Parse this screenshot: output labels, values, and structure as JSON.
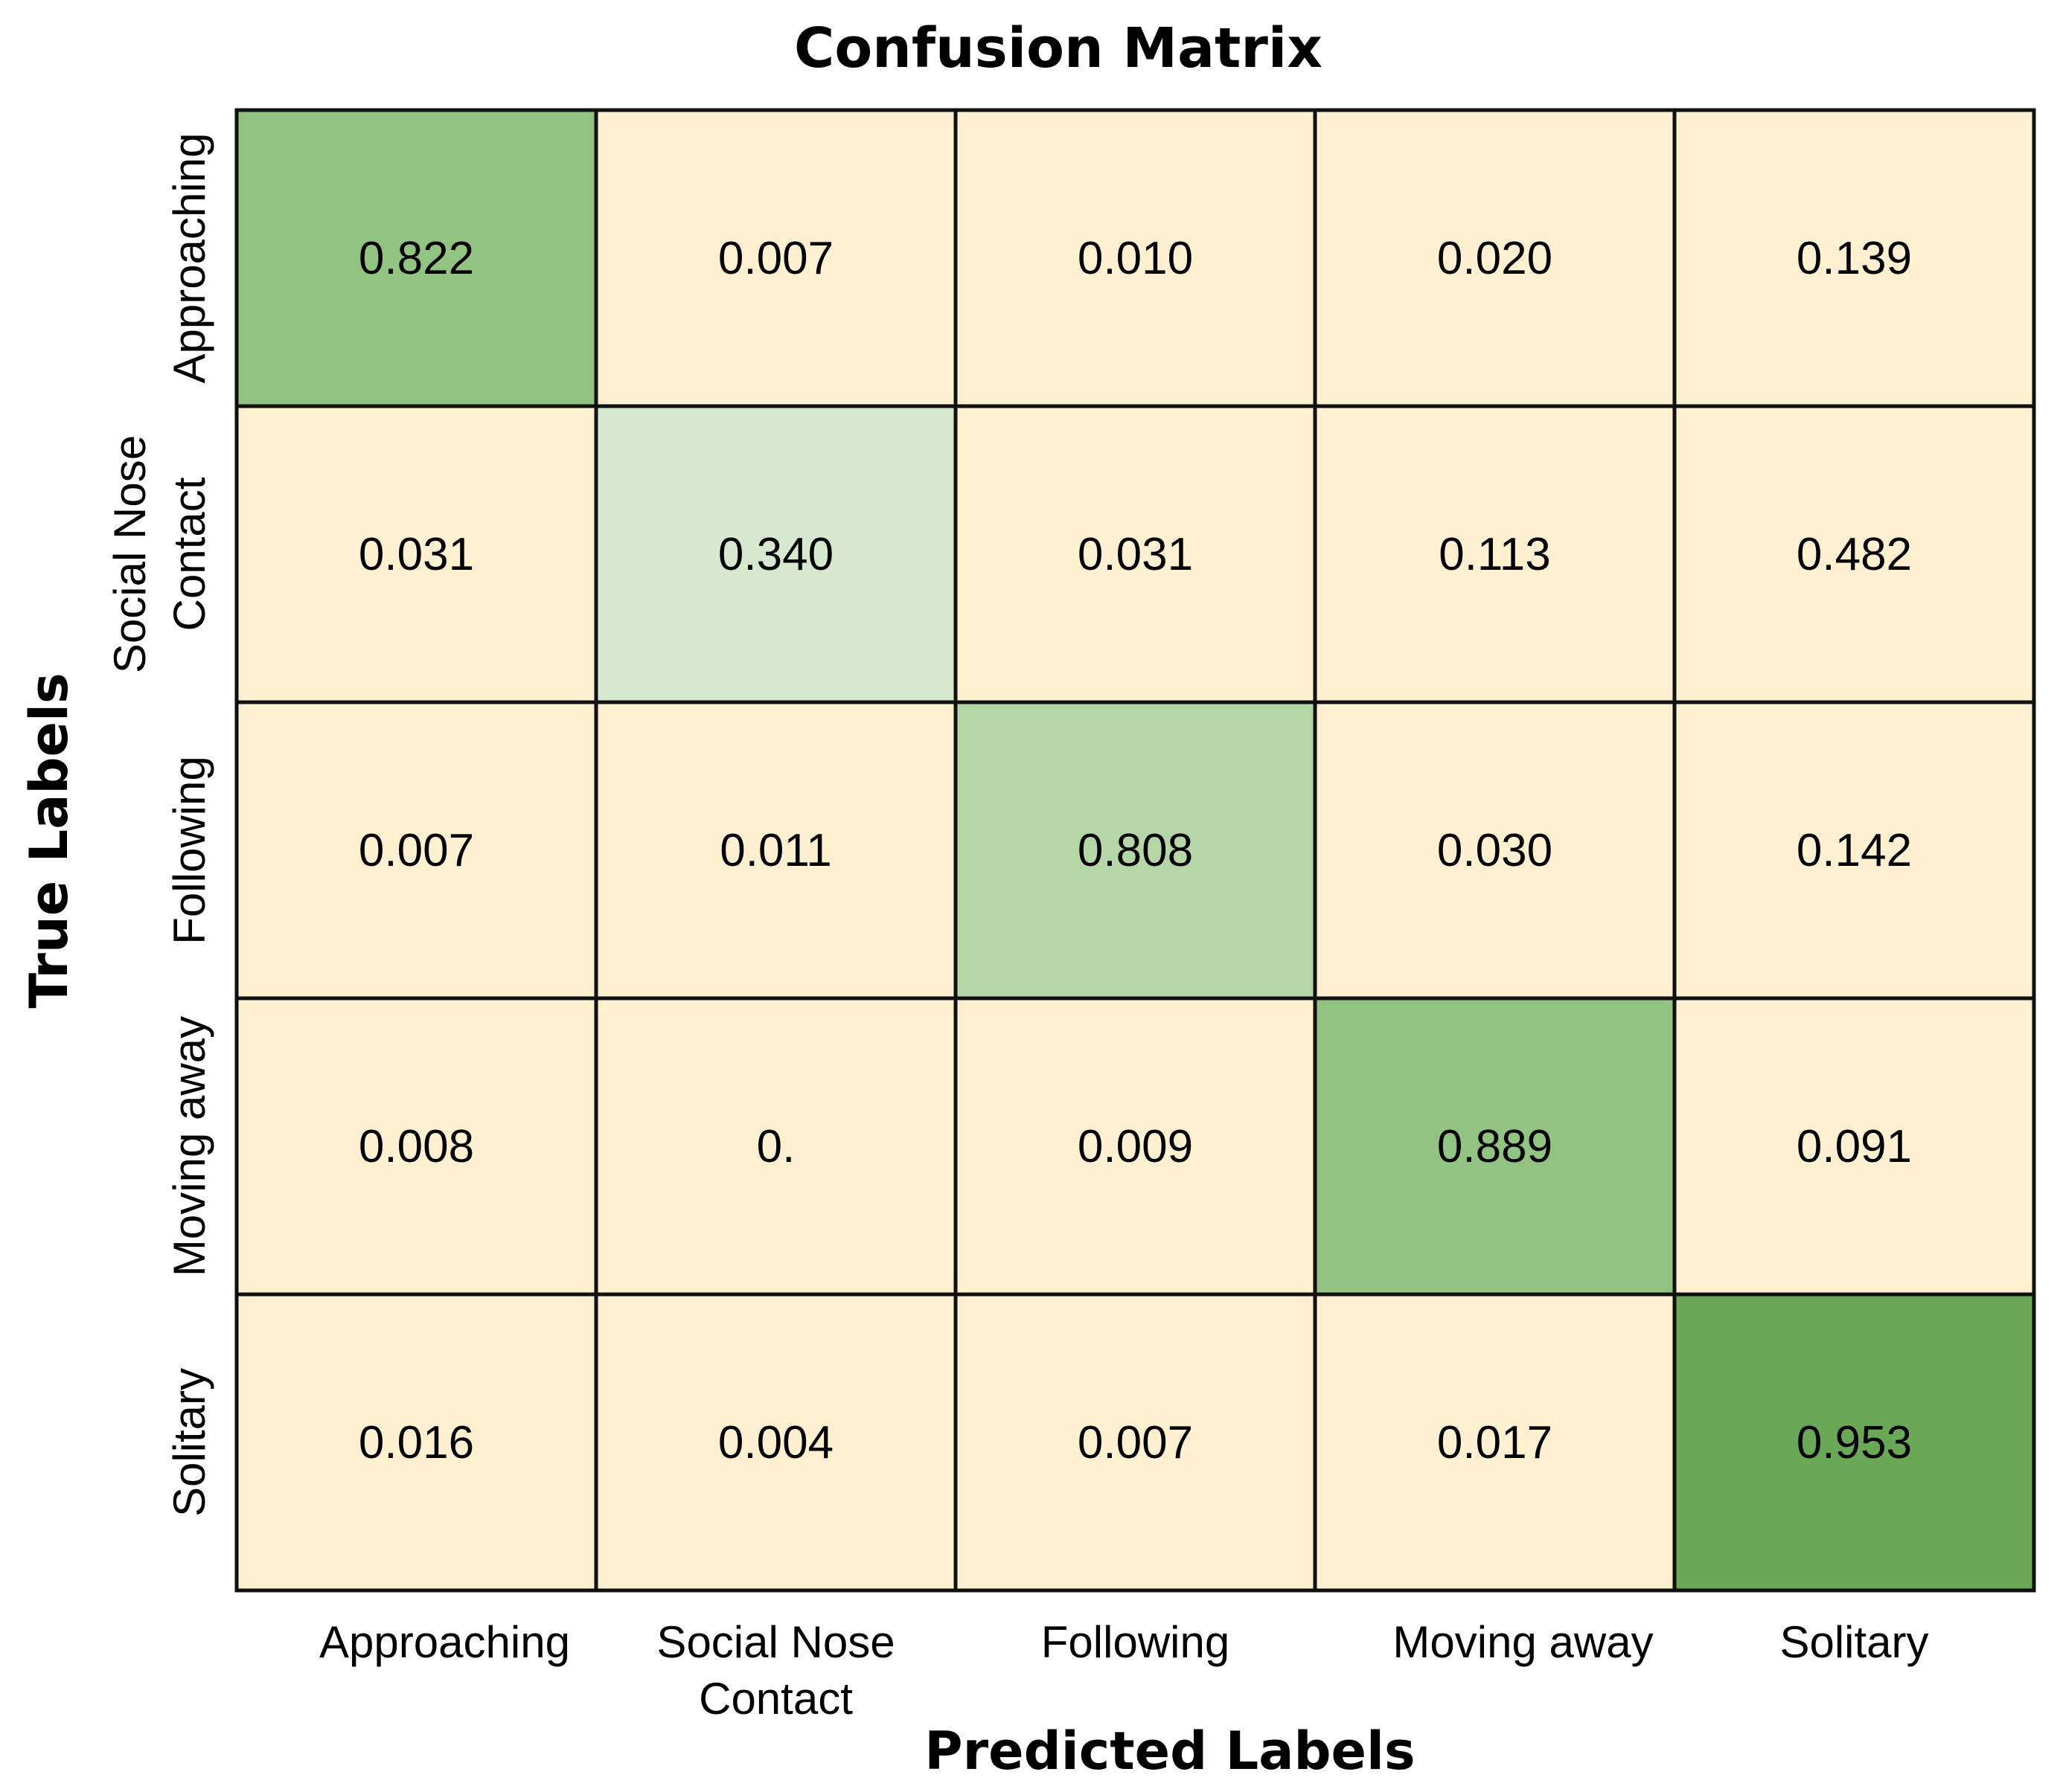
{
  "chart_data": {
    "type": "heatmap",
    "title": "Confusion Matrix",
    "xlabel": "Predicted Labels",
    "ylabel": "True Labels",
    "x_categories": [
      "Approaching",
      "Social Nose Contact",
      "Following",
      "Moving away",
      "Solitary"
    ],
    "y_categories": [
      "Approaching",
      "Social Nose Contact",
      "Following",
      "Moving away",
      "Solitary"
    ],
    "matrix": [
      [
        0.822,
        0.007,
        0.01,
        0.02,
        0.139
      ],
      [
        0.031,
        0.34,
        0.031,
        0.113,
        0.482
      ],
      [
        0.007,
        0.011,
        0.808,
        0.03,
        0.142
      ],
      [
        0.008,
        0.0,
        0.009,
        0.889,
        0.091
      ],
      [
        0.016,
        0.004,
        0.007,
        0.017,
        0.953
      ]
    ],
    "cell_labels": [
      [
        "0.822",
        "0.007",
        "0.010",
        "0.020",
        "0.139"
      ],
      [
        "0.031",
        "0.340",
        "0.031",
        "0.113",
        "0.482"
      ],
      [
        "0.007",
        "0.011",
        "0.808",
        "0.030",
        "0.142"
      ],
      [
        "0.008",
        "0.",
        "0.009",
        "0.889",
        "0.091"
      ],
      [
        "0.016",
        "0.004",
        "0.007",
        "0.017",
        "0.953"
      ]
    ],
    "x_tick_lines": [
      [
        "Approaching"
      ],
      [
        "Social Nose",
        "Contact"
      ],
      [
        "Following"
      ],
      [
        "Moving away"
      ],
      [
        "Solitary"
      ]
    ],
    "y_tick_lines": [
      [
        "Approaching"
      ],
      [
        "Social Nose",
        "Contact"
      ],
      [
        "Following"
      ],
      [
        "Moving away"
      ],
      [
        "Solitary"
      ]
    ],
    "colors": {
      "off_diagonal": "#fff0d2",
      "diag_0": "#93c382",
      "diag_1": "#d6e8cf",
      "diag_2": "#b5d6a6",
      "diag_3": "#93c382",
      "diag_4": "#6aa857",
      "border": "#111111"
    }
  }
}
